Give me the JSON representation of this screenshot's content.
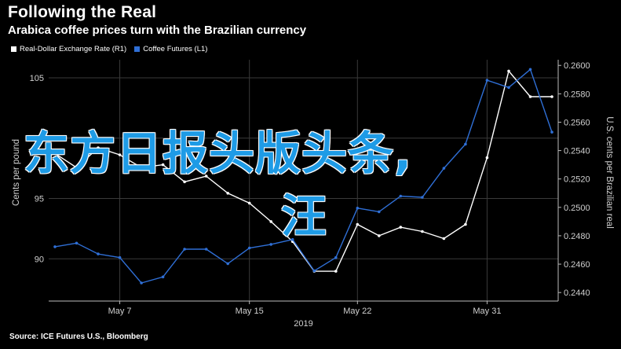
{
  "header": {
    "title": "Following the Real",
    "subtitle": "Arabica coffee prices turn with the Brazilian currency"
  },
  "legend": [
    {
      "label": "Real-Dollar Exchange Rate (R1)",
      "color": "#ffffff"
    },
    {
      "label": "Coffee Futures (L1)",
      "color": "#2f6fd6"
    }
  ],
  "source": "Source: ICE Futures U.S., Bloomberg",
  "overlay": {
    "line1": "东方日报头版头条,",
    "line2": "汪"
  },
  "chart_data": {
    "type": "line",
    "title": "Following the Real",
    "subtitle": "Arabica coffee prices turn with the Brazilian currency",
    "xlabel": "2019",
    "x_ticks": [
      "May 7",
      "May 15",
      "May 22",
      "May 31"
    ],
    "left_axis": {
      "label": "Cents per pound",
      "ticks": [
        "105",
        "100",
        "95",
        "90"
      ],
      "ylim": [
        86.5,
        106.5
      ]
    },
    "right_axis": {
      "label": "U.S. cents per Brazilian real",
      "ticks": [
        "0.2600",
        "0.2580",
        "0.2560",
        "0.2540",
        "0.2520",
        "0.2500",
        "0.2480",
        "0.2460",
        "0.2440"
      ],
      "ylim": [
        0.2434,
        0.2604
      ]
    },
    "x": [
      "May 2",
      "May 3",
      "May 6",
      "May 7",
      "May 8",
      "May 9",
      "May 10",
      "May 13",
      "May 14",
      "May 15",
      "May 16",
      "May 17",
      "May 20",
      "May 21",
      "May 22",
      "May 23",
      "May 24",
      "May 28",
      "May 29",
      "May 30",
      "May 31",
      "Jun 3",
      "Jun 4",
      "Jun 5"
    ],
    "series": [
      {
        "name": "Real-Dollar Exchange Rate (R1)",
        "axis": "right",
        "color": "#ffffff",
        "values": [
          0.2538,
          0.2528,
          0.2542,
          0.2537,
          0.2528,
          0.253,
          0.2518,
          0.2522,
          0.251,
          0.2503,
          0.249,
          0.2476,
          0.2455,
          0.2455,
          0.2488,
          0.248,
          0.2486,
          0.2483,
          0.2478,
          0.2488,
          0.2535,
          0.2596,
          0.2578,
          0.2578
        ]
      },
      {
        "name": "Coffee Futures (L1)",
        "axis": "left",
        "color": "#2f6fd6",
        "values": [
          91.0,
          91.3,
          90.4,
          90.1,
          88.0,
          88.5,
          90.8,
          90.8,
          89.6,
          90.9,
          91.2,
          91.6,
          89.0,
          90.1,
          94.2,
          93.9,
          95.2,
          95.1,
          97.5,
          99.5,
          104.8,
          104.2,
          105.7,
          100.5
        ]
      }
    ],
    "grid": true,
    "legend_position": "top-left"
  }
}
